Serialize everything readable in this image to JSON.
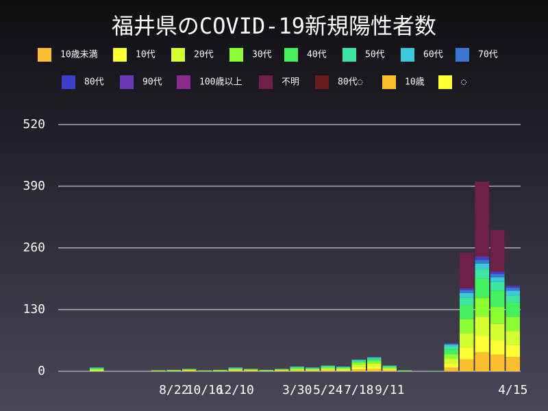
{
  "chart_data": {
    "type": "stacked-bar",
    "title": "福井県のCOVID-19新規陽性者数",
    "categories": [
      null,
      null,
      null,
      null,
      null,
      null,
      null,
      "8/22",
      null,
      "10/16",
      null,
      "12/10",
      null,
      null,
      null,
      "3/30",
      null,
      "5/24",
      null,
      "7/18",
      null,
      "9/11",
      null,
      null,
      null,
      null,
      null,
      null,
      null,
      "4/15"
    ],
    "ylim": [
      0,
      566
    ],
    "yticks": [
      0,
      130,
      260,
      390,
      520
    ],
    "grid": true,
    "series": [
      {
        "name": "10歳未満",
        "color": "#fbbf2d",
        "values": [
          0,
          0,
          0,
          0,
          0,
          0,
          0,
          0,
          1,
          0,
          0,
          1,
          1,
          0,
          1,
          1,
          1,
          2,
          1,
          4,
          5,
          2,
          0,
          0,
          0,
          8,
          25,
          40,
          35,
          30
        ]
      },
      {
        "name": "10代",
        "color": "#ffff33",
        "values": [
          0,
          0,
          1,
          0,
          0,
          0,
          0,
          0,
          1,
          0,
          0,
          1,
          1,
          0,
          1,
          1,
          1,
          2,
          2,
          5,
          5,
          2,
          0,
          0,
          0,
          8,
          25,
          35,
          30,
          25
        ]
      },
      {
        "name": "20代",
        "color": "#d4ff33",
        "values": [
          0,
          0,
          2,
          0,
          0,
          0,
          1,
          1,
          1,
          1,
          1,
          2,
          1,
          1,
          1,
          2,
          2,
          2,
          2,
          5,
          6,
          2,
          1,
          0,
          0,
          10,
          30,
          40,
          35,
          30
        ]
      },
      {
        "name": "30代",
        "color": "#8cff33",
        "values": [
          0,
          0,
          2,
          0,
          0,
          0,
          1,
          1,
          1,
          0,
          1,
          1,
          1,
          1,
          1,
          2,
          1,
          2,
          2,
          4,
          5,
          2,
          0,
          0,
          0,
          10,
          30,
          40,
          35,
          30
        ]
      },
      {
        "name": "40代",
        "color": "#44f060",
        "values": [
          0,
          0,
          1,
          0,
          0,
          0,
          0,
          1,
          1,
          1,
          1,
          1,
          1,
          0,
          1,
          2,
          1,
          2,
          1,
          3,
          4,
          2,
          1,
          0,
          1,
          10,
          30,
          40,
          35,
          30
        ]
      },
      {
        "name": "50代",
        "color": "#3de5a0",
        "values": [
          0,
          0,
          1,
          0,
          0,
          0,
          0,
          0,
          0,
          0,
          0,
          1,
          0,
          1,
          0,
          1,
          1,
          1,
          1,
          2,
          2,
          1,
          0,
          0,
          0,
          6,
          15,
          20,
          18,
          15
        ]
      },
      {
        "name": "60代",
        "color": "#3cc9d8",
        "values": [
          0,
          0,
          1,
          0,
          0,
          0,
          0,
          0,
          0,
          0,
          0,
          1,
          0,
          0,
          0,
          1,
          1,
          1,
          1,
          1,
          2,
          1,
          0,
          0,
          0,
          4,
          10,
          12,
          10,
          10
        ]
      },
      {
        "name": "70代",
        "color": "#3a78d2",
        "values": [
          0,
          0,
          0,
          0,
          0,
          0,
          0,
          0,
          0,
          0,
          0,
          0,
          0,
          0,
          0,
          0,
          0,
          0,
          0,
          1,
          1,
          0,
          0,
          0,
          0,
          2,
          6,
          8,
          7,
          6
        ]
      },
      {
        "name": "80代",
        "color": "#3e3ecc",
        "values": [
          0,
          0,
          0,
          0,
          0,
          0,
          0,
          0,
          0,
          0,
          0,
          0,
          0,
          0,
          0,
          0,
          0,
          0,
          0,
          0,
          0,
          0,
          0,
          0,
          0,
          1,
          3,
          5,
          4,
          3
        ]
      },
      {
        "name": "90代",
        "color": "#6c37b8",
        "values": [
          0,
          0,
          0,
          0,
          0,
          0,
          0,
          0,
          0,
          0,
          0,
          0,
          0,
          0,
          0,
          0,
          0,
          0,
          0,
          0,
          0,
          0,
          0,
          0,
          0,
          0,
          1,
          2,
          1,
          1
        ]
      },
      {
        "name": "100歳以上",
        "color": "#8b2a8e",
        "values": [
          0,
          0,
          0,
          0,
          0,
          0,
          0,
          0,
          0,
          0,
          0,
          0,
          0,
          0,
          0,
          0,
          0,
          0,
          0,
          0,
          0,
          0,
          0,
          0,
          0,
          0,
          0,
          0,
          0,
          0
        ]
      },
      {
        "name": "不明",
        "color": "#6e2048",
        "values": [
          0,
          0,
          0,
          0,
          0,
          0,
          0,
          0,
          0,
          0,
          0,
          0,
          0,
          0,
          0,
          0,
          0,
          0,
          0,
          0,
          0,
          0,
          0,
          0,
          0,
          0,
          75,
          158,
          88,
          0
        ]
      },
      {
        "name": "80代◌",
        "color": "#6a1c1c",
        "values": [
          0,
          0,
          0,
          0,
          0,
          0,
          0,
          0,
          0,
          0,
          0,
          0,
          0,
          0,
          0,
          0,
          0,
          0,
          0,
          0,
          0,
          0,
          0,
          0,
          0,
          0,
          0,
          0,
          0,
          0
        ]
      },
      {
        "name": "10歳",
        "color": "#fbbf2d",
        "values": [
          0,
          0,
          0,
          0,
          0,
          0,
          0,
          0,
          0,
          0,
          0,
          0,
          0,
          0,
          0,
          0,
          0,
          0,
          0,
          0,
          0,
          0,
          0,
          0,
          0,
          0,
          0,
          0,
          0,
          0
        ]
      },
      {
        "name": "◌",
        "color": "#ffff33",
        "values": [
          0,
          0,
          0,
          0,
          0,
          0,
          0,
          0,
          0,
          0,
          0,
          0,
          0,
          0,
          0,
          0,
          0,
          0,
          0,
          0,
          0,
          0,
          0,
          0,
          0,
          0,
          0,
          0,
          0,
          0
        ]
      }
    ]
  }
}
